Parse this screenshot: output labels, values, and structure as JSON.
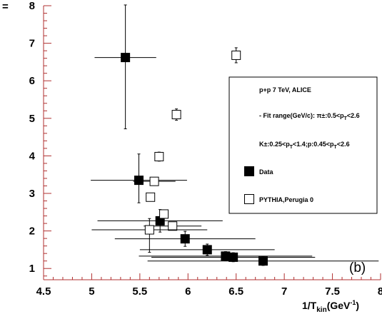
{
  "chart_data": {
    "type": "scatter",
    "xlabel": {
      "main": "1/T",
      "sub": "kin",
      "tail": "(GeV",
      "sup": "-1",
      "close": ")"
    },
    "ylabel": "",
    "xlim": [
      4.5,
      8
    ],
    "ylim": [
      0.7,
      8
    ],
    "xticks": [
      "4.5",
      "5",
      "5.5",
      "6",
      "6.5",
      "7",
      "7.5",
      "8"
    ],
    "yticks": [
      "1",
      "2",
      "3",
      "4",
      "5",
      "6",
      "7",
      "8"
    ],
    "xtick_values": [
      4.5,
      5,
      5.5,
      6,
      6.5,
      7,
      7.5,
      8
    ],
    "ytick_values": [
      1,
      2,
      3,
      4,
      5,
      6,
      7,
      8
    ],
    "grid": false,
    "legend_position": "right",
    "panel_label": "(b)",
    "axis_color": "#b03030",
    "legend": {
      "lines": [
        "p+p 7 TeV, ALICE",
        "- Fit range(GeV/c): π±:0.5<p",
        "K±:0.25<p",
        "Data",
        "PYTHIA,Perugia 0"
      ],
      "line2_sub1": "T",
      "line2_tail": "<2.6",
      "line3_sub1": "T",
      "line3_mid": "<1.4;p:0.45<p",
      "line3_sub2": "T",
      "line3_tail": "<2.6"
    },
    "series": [
      {
        "name": "Data",
        "marker": "filled-square",
        "points": [
          {
            "x": 5.35,
            "y": 6.62,
            "xerr": 0.32,
            "yerr_lo": 1.9,
            "yerr_hi": 1.4
          },
          {
            "x": 5.49,
            "y": 3.35,
            "xerr": 0.5,
            "yerr_lo": 0.6,
            "yerr_hi": 0.7
          },
          {
            "x": 5.71,
            "y": 2.27,
            "xerr": 0.65,
            "yerr_lo": 0.3,
            "yerr_hi": 0.3
          },
          {
            "x": 5.97,
            "y": 1.79,
            "xerr": 0.73,
            "yerr_lo": 0.2,
            "yerr_hi": 0.2
          },
          {
            "x": 6.2,
            "y": 1.5,
            "xerr": 0.7,
            "yerr_lo": 0.15,
            "yerr_hi": 0.15
          },
          {
            "x": 6.39,
            "y": 1.33,
            "xerr": 0.9,
            "yerr_lo": 0.12,
            "yerr_hi": 0.12
          },
          {
            "x": 6.47,
            "y": 1.3,
            "xerr": 0.85,
            "yerr_lo": 0.12,
            "yerr_hi": 0.12
          },
          {
            "x": 6.78,
            "y": 1.2,
            "xerr": 1.2,
            "yerr_lo": 0.12,
            "yerr_hi": 0.12
          }
        ]
      },
      {
        "name": "PYTHIA,Perugia 0",
        "marker": "open-square",
        "points": [
          {
            "x": 6.5,
            "y": 6.68,
            "xerr": 0,
            "yerr_lo": 0.2,
            "yerr_hi": 0.2
          },
          {
            "x": 5.88,
            "y": 5.1,
            "xerr": 0,
            "yerr_lo": 0.15,
            "yerr_hi": 0.15
          },
          {
            "x": 5.7,
            "y": 3.98,
            "xerr": 0,
            "yerr_lo": 0.12,
            "yerr_hi": 0.12
          },
          {
            "x": 5.65,
            "y": 3.32,
            "xerr": 0.22,
            "yerr_lo": 0.1,
            "yerr_hi": 0.1
          },
          {
            "x": 5.61,
            "y": 2.9,
            "xerr": 0,
            "yerr_lo": 0.1,
            "yerr_hi": 0.1
          },
          {
            "x": 5.75,
            "y": 2.45,
            "xerr": 0,
            "yerr_lo": 0.1,
            "yerr_hi": 0.1
          },
          {
            "x": 5.84,
            "y": 2.13,
            "xerr": 0.3,
            "yerr_lo": 0.1,
            "yerr_hi": 0.1
          },
          {
            "x": 5.6,
            "y": 2.03,
            "xerr": 0.6,
            "yerr_lo": 0.6,
            "yerr_hi": 0.3
          }
        ]
      }
    ]
  }
}
